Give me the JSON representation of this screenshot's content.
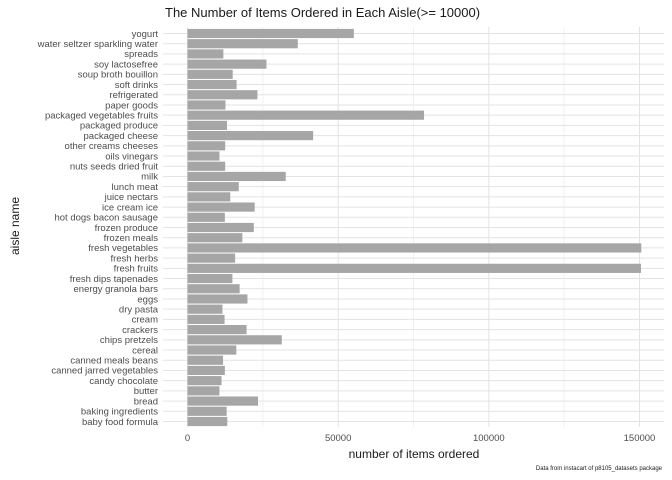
{
  "chart_data": {
    "type": "bar",
    "orientation": "horizontal",
    "title": "The Number of Items Ordered in Each Aisle(>= 10000)",
    "xlabel": "number of items ordered",
    "ylabel": "aisle name",
    "caption": "Data from instacart of p8105_datasets package",
    "xlim": [
      0,
      157000
    ],
    "xticks": [
      0,
      50000,
      100000,
      150000
    ],
    "xtick_labels": [
      "0",
      "50000",
      "100000",
      "150000"
    ],
    "grid": true,
    "bar_color": "#a6a6a6",
    "categories": [
      "baby food formula",
      "baking ingredients",
      "bread",
      "butter",
      "candy chocolate",
      "canned jarred vegetables",
      "canned meals beans",
      "cereal",
      "chips pretzels",
      "crackers",
      "cream",
      "dry pasta",
      "eggs",
      "energy granola bars",
      "fresh dips tapenades",
      "fresh fruits",
      "fresh herbs",
      "fresh vegetables",
      "frozen meals",
      "frozen produce",
      "hot dogs bacon sausage",
      "ice cream ice",
      "juice nectars",
      "lunch meat",
      "milk",
      "nuts seeds dried fruit",
      "oils vinegars",
      "other creams cheeses",
      "packaged cheese",
      "packaged produce",
      "packaged vegetables fruits",
      "paper goods",
      "refrigerated",
      "soft drinks",
      "soup broth bouillon",
      "soy lactosefree",
      "spreads",
      "water seltzer sparkling water",
      "yogurt"
    ],
    "values": [
      13200,
      13000,
      23400,
      10600,
      11300,
      12400,
      11800,
      16200,
      31300,
      19600,
      12300,
      11600,
      19900,
      17300,
      14900,
      150500,
      15800,
      150600,
      18200,
      22000,
      12400,
      22300,
      14200,
      17000,
      32600,
      12500,
      10600,
      12500,
      41700,
      13100,
      78500,
      12600,
      23200,
      16300,
      15000,
      26200,
      11900,
      36600,
      55200
    ]
  }
}
